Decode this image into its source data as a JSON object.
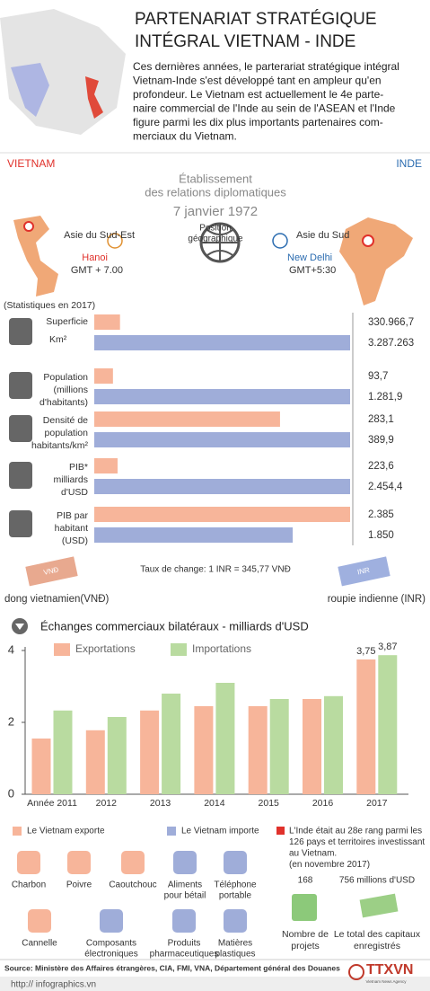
{
  "header": {
    "title": [
      "PARTENARIAT STRATÉGIQUE",
      "INTÉGRAL  VIETNAM - INDE"
    ],
    "intro": [
      "Ces dernières années, le parterariat stratégique intégral",
      "Vietnam-Inde s'est développé tant en ampleur qu'en",
      "profondeur. Le Vietnam est actuellement le 4e parte-",
      "naire commercial de l'Inde au sein de l'ASEAN et l'Inde",
      "figure parmi les dix plus importants partenaires com-",
      "merciaux du Vietnam."
    ]
  },
  "countries": {
    "vietnam": "VIETNAM",
    "india": "INDE"
  },
  "relations": {
    "lines": [
      "Établissement",
      "des relations diplomatiques"
    ],
    "date": "7 janvier 1972"
  },
  "geography": {
    "label": [
      "Position",
      "géographique"
    ],
    "vietnam": {
      "region": "Asie du Sud-Est",
      "capital": "Hanoi",
      "timezone": "GMT + 7.00"
    },
    "india": {
      "region": "Asie du Sud",
      "capital": "New Delhi",
      "timezone": "GMT+5:30"
    }
  },
  "stats": {
    "note": "(Statistiques en 2017)",
    "vietnam_color": "#f7b59a",
    "india_color": "#9fadd9",
    "rows": [
      {
        "label": [
          "Superficie"
        ],
        "unit": "Km²",
        "vietnam": 330966.7,
        "vietnam_label": "330.966,7",
        "india": 3287263,
        "india_label": "3.287.263"
      },
      {
        "label": [
          "Population",
          "(millions",
          "d'habitants)"
        ],
        "vietnam": 93.7,
        "vietnam_label": "93,7",
        "india": 1281.9,
        "india_label": "1.281,9"
      },
      {
        "label": [
          "Densité de",
          "population",
          "habitants/km²"
        ],
        "vietnam": 283.1,
        "vietnam_label": "283,1",
        "india": 389.9,
        "india_label": "389,9"
      },
      {
        "label": [
          "PIB*",
          "milliards",
          "d'USD"
        ],
        "vietnam": 223.6,
        "vietnam_label": "223,6",
        "india": 2454.4,
        "india_label": "2.454,4"
      },
      {
        "label": [
          "PIB par",
          "habitant",
          "(USD)"
        ],
        "vietnam": 2385,
        "vietnam_label": "2.385",
        "india": 1850,
        "india_label": "1.850"
      }
    ]
  },
  "currency": {
    "rate": "Taux de change: 1 INR = 345,77 VNĐ",
    "vietnam": "dong vietnamien(VNĐ)",
    "india": "roupie indienne (INR)",
    "vnd_note": "VNĐ",
    "inr_note": "INR"
  },
  "chart_data": {
    "type": "bar",
    "title": "Échanges commerciaux bilatéraux - milliards d'USD",
    "categories": [
      "Année 2011",
      "2012",
      "2013",
      "2014",
      "2015",
      "2016",
      "2017"
    ],
    "series": [
      {
        "name": "Exportations",
        "color": "#f7b59a",
        "values": [
          1.55,
          1.78,
          2.33,
          2.45,
          2.45,
          2.65,
          3.75
        ],
        "value_labels": [
          null,
          null,
          null,
          null,
          null,
          null,
          "3,75"
        ]
      },
      {
        "name": "Importations",
        "color": "#b9dba0",
        "values": [
          2.33,
          2.15,
          2.8,
          3.1,
          2.65,
          2.73,
          3.87
        ],
        "value_labels": [
          null,
          null,
          null,
          null,
          null,
          null,
          "3,87"
        ]
      }
    ],
    "ylim": [
      0,
      4.1
    ],
    "yticks": [
      0,
      2,
      4
    ],
    "grid": false
  },
  "trade": {
    "exports_legend": "Le Vietnam exporte",
    "imports_legend": "Le Vietnam importe",
    "products": [
      {
        "name": [
          "Charbon"
        ],
        "flow": "export"
      },
      {
        "name": [
          "Poivre"
        ],
        "flow": "export"
      },
      {
        "name": [
          "Caoutchouc"
        ],
        "flow": "export"
      },
      {
        "name": [
          "Aliments",
          "pour bétail"
        ],
        "flow": "import"
      },
      {
        "name": [
          "Téléphone",
          "portable"
        ],
        "flow": "import"
      },
      {
        "name": [
          "Cannelle"
        ],
        "flow": "export"
      },
      {
        "name": [
          "Composants",
          "électroniques"
        ],
        "flow": "import"
      },
      {
        "name": [
          "Produits",
          "pharmaceutiques"
        ],
        "flow": "import"
      },
      {
        "name": [
          "Matières",
          "plastiques"
        ],
        "flow": "import"
      }
    ]
  },
  "investment": {
    "note": [
      "L'Inde était au 28e rang parmi les",
      "126 pays et territoires  investissant",
      "au Vietnam.",
      "(en novembre 2017)"
    ],
    "projects": 168,
    "capital": "756 millions d'USD",
    "projects_label": [
      "Nombre de",
      "projets"
    ],
    "capital_label": [
      "Le total des capitaux",
      "enregistrés"
    ]
  },
  "footer": {
    "source": "Source: Ministère des Affaires étrangères, CIA, FMI, VNA, Département général des Douanes",
    "url": "http:// infographics.vn",
    "logo": "TTXVN",
    "logo_sub": "Vietnam News Agency"
  }
}
